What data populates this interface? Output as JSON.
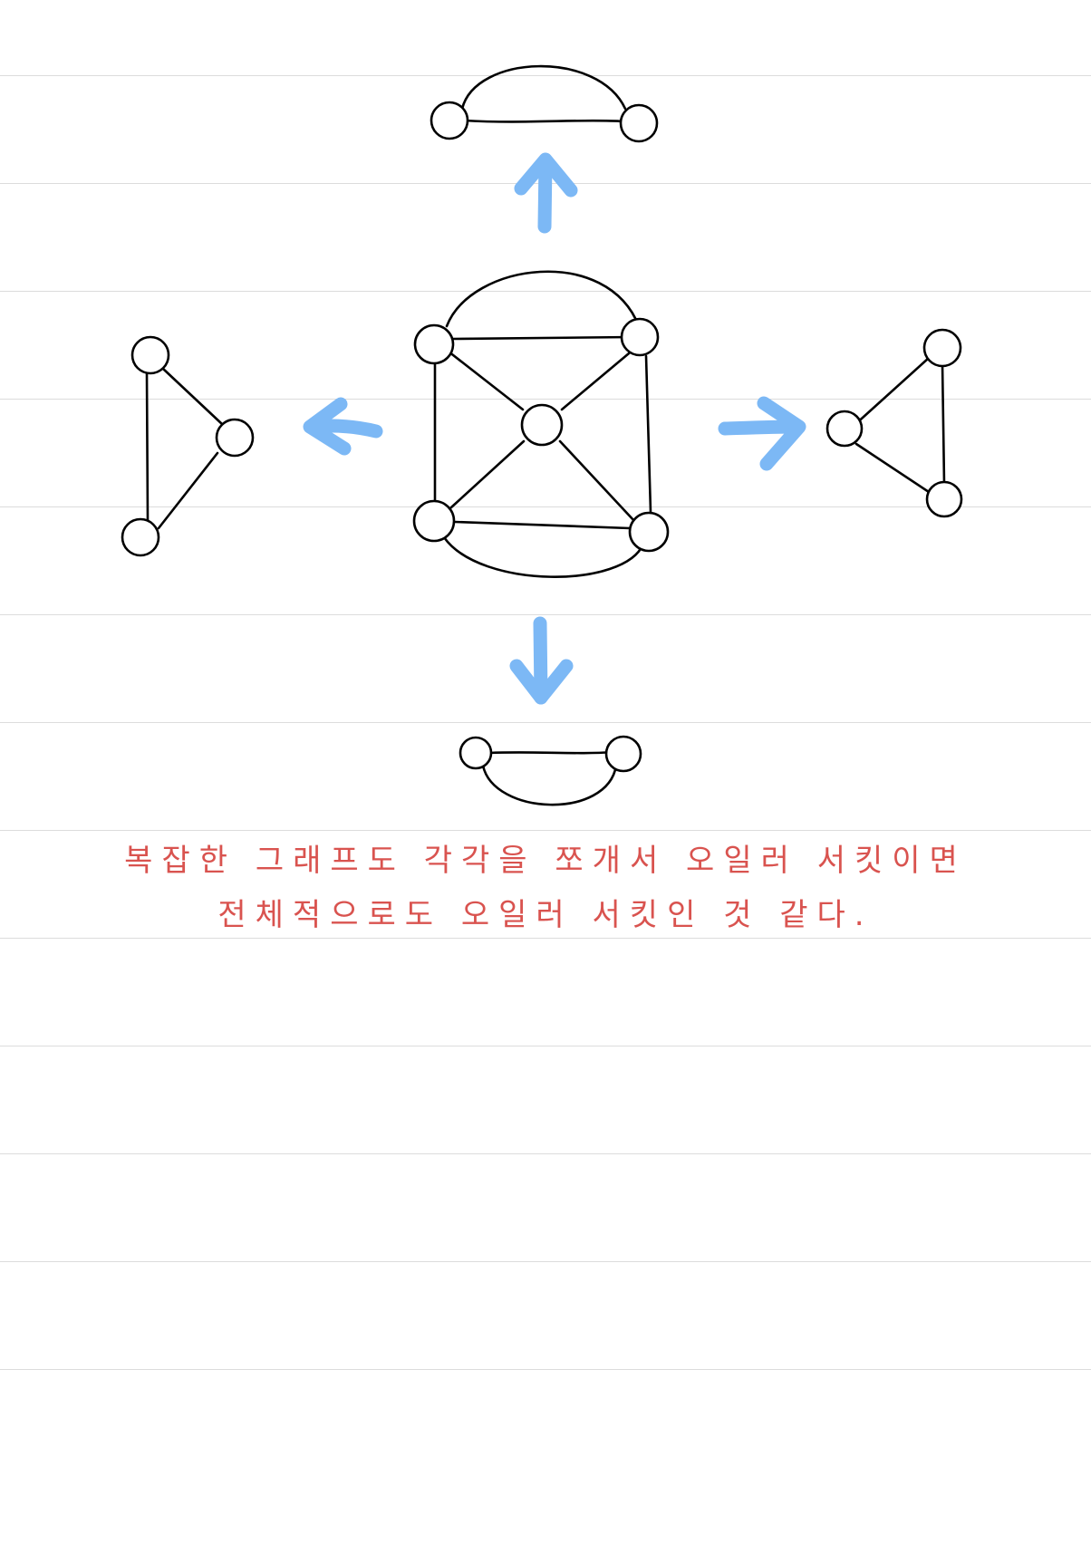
{
  "note": {
    "line1": "복잡한 그래프도 각각을 쪼개서 오일러 서킷이면",
    "line2": "전체적으로도 오일러 서킷인 것 같다."
  },
  "colors": {
    "ink": "#000000",
    "arrow": "#7cb8f5",
    "note": "#d9534f",
    "rule": "#dcdcdc"
  }
}
